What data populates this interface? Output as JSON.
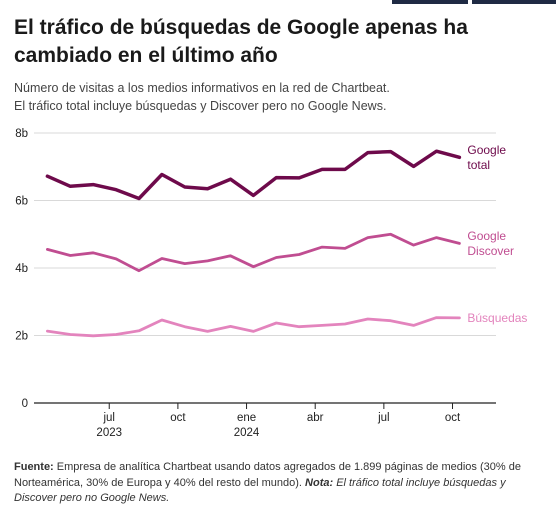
{
  "title": "El tráfico de búsquedas de Google apenas ha cambiado en el último año",
  "subtitle": {
    "line1": "Número de visitas a los medios informativos en la red de Chartbeat.",
    "line2": "El tráfico total incluye búsquedas y Discover pero no Google News."
  },
  "footer": {
    "source_label": "Fuente:",
    "source_text": " Empresa de analítica Chartbeat usando datos agregados de 1.899 páginas de medios (30% de Norteamérica, 30% de Europa y 40% del resto del mundo). ",
    "note_label": "Nota:",
    "note_text": " El tráfico total incluye búsquedas y Discover pero no Google News."
  },
  "colors": {
    "google_total": "#6e0a4b",
    "google_discover": "#c04d91",
    "busquedas": "#e384bd",
    "grid": "#d9d9d9",
    "baseline": "#222222",
    "header_tab": "#1f2a44"
  },
  "chart_data": {
    "type": "line",
    "title": "El tráfico de búsquedas de Google apenas ha cambiado en el último año",
    "x_unit": "mes (semanas 2023–2024)",
    "x_ticks": [
      {
        "label": "jul",
        "sublabel": "2023",
        "x": 4.0
      },
      {
        "label": "oct",
        "sublabel": "",
        "x": 7.0
      },
      {
        "label": "ene",
        "sublabel": "2024",
        "x": 10.0
      },
      {
        "label": "abr",
        "sublabel": "",
        "x": 13.0
      },
      {
        "label": "jul",
        "sublabel": "",
        "x": 16.0
      },
      {
        "label": "oct",
        "sublabel": "",
        "x": 19.0
      }
    ],
    "xlim": [
      0.8,
      20.9
    ],
    "y_ticks": [
      {
        "label": "0",
        "value": 0
      },
      {
        "label": "2b",
        "value": 2
      },
      {
        "label": "4b",
        "value": 4
      },
      {
        "label": "6b",
        "value": 6
      },
      {
        "label": "8b",
        "value": 8
      }
    ],
    "ylim": [
      0,
      8
    ],
    "grid": true,
    "series": [
      {
        "name": "Google total",
        "label_lines": [
          "Google",
          "total"
        ],
        "color_key": "google_total",
        "stroke_width": 3.5,
        "points": [
          [
            1.3,
            6.72
          ],
          [
            2.3,
            6.42
          ],
          [
            3.3,
            6.47
          ],
          [
            4.3,
            6.32
          ],
          [
            5.3,
            6.06
          ],
          [
            6.3,
            6.77
          ],
          [
            7.3,
            6.4
          ],
          [
            8.3,
            6.35
          ],
          [
            9.3,
            6.63
          ],
          [
            10.3,
            6.15
          ],
          [
            11.3,
            6.68
          ],
          [
            12.3,
            6.67
          ],
          [
            13.3,
            6.92
          ],
          [
            14.3,
            6.92
          ],
          [
            15.3,
            7.42
          ],
          [
            16.3,
            7.45
          ],
          [
            17.3,
            7.01
          ],
          [
            18.3,
            7.46
          ],
          [
            19.3,
            7.28
          ]
        ]
      },
      {
        "name": "Google Discover",
        "label_lines": [
          "Google",
          "Discover"
        ],
        "color_key": "google_discover",
        "stroke_width": 2.8,
        "points": [
          [
            1.3,
            4.55
          ],
          [
            2.3,
            4.37
          ],
          [
            3.3,
            4.45
          ],
          [
            4.3,
            4.27
          ],
          [
            5.3,
            3.92
          ],
          [
            6.3,
            4.28
          ],
          [
            7.3,
            4.13
          ],
          [
            8.3,
            4.21
          ],
          [
            9.3,
            4.36
          ],
          [
            10.3,
            4.04
          ],
          [
            11.3,
            4.31
          ],
          [
            12.3,
            4.4
          ],
          [
            13.3,
            4.62
          ],
          [
            14.3,
            4.58
          ],
          [
            15.3,
            4.9
          ],
          [
            16.3,
            5.0
          ],
          [
            17.3,
            4.68
          ],
          [
            18.3,
            4.9
          ],
          [
            19.3,
            4.73
          ]
        ]
      },
      {
        "name": "Búsquedas",
        "label_lines": [
          "Búsquedas"
        ],
        "color_key": "busquedas",
        "stroke_width": 2.8,
        "points": [
          [
            1.3,
            2.13
          ],
          [
            2.3,
            2.03
          ],
          [
            3.3,
            1.99
          ],
          [
            4.3,
            2.03
          ],
          [
            5.3,
            2.14
          ],
          [
            6.3,
            2.46
          ],
          [
            7.3,
            2.26
          ],
          [
            8.3,
            2.12
          ],
          [
            9.3,
            2.27
          ],
          [
            10.3,
            2.12
          ],
          [
            11.3,
            2.37
          ],
          [
            12.3,
            2.26
          ],
          [
            13.3,
            2.3
          ],
          [
            14.3,
            2.34
          ],
          [
            15.3,
            2.49
          ],
          [
            16.3,
            2.44
          ],
          [
            17.3,
            2.3
          ],
          [
            18.3,
            2.53
          ],
          [
            19.3,
            2.52
          ]
        ]
      }
    ]
  }
}
